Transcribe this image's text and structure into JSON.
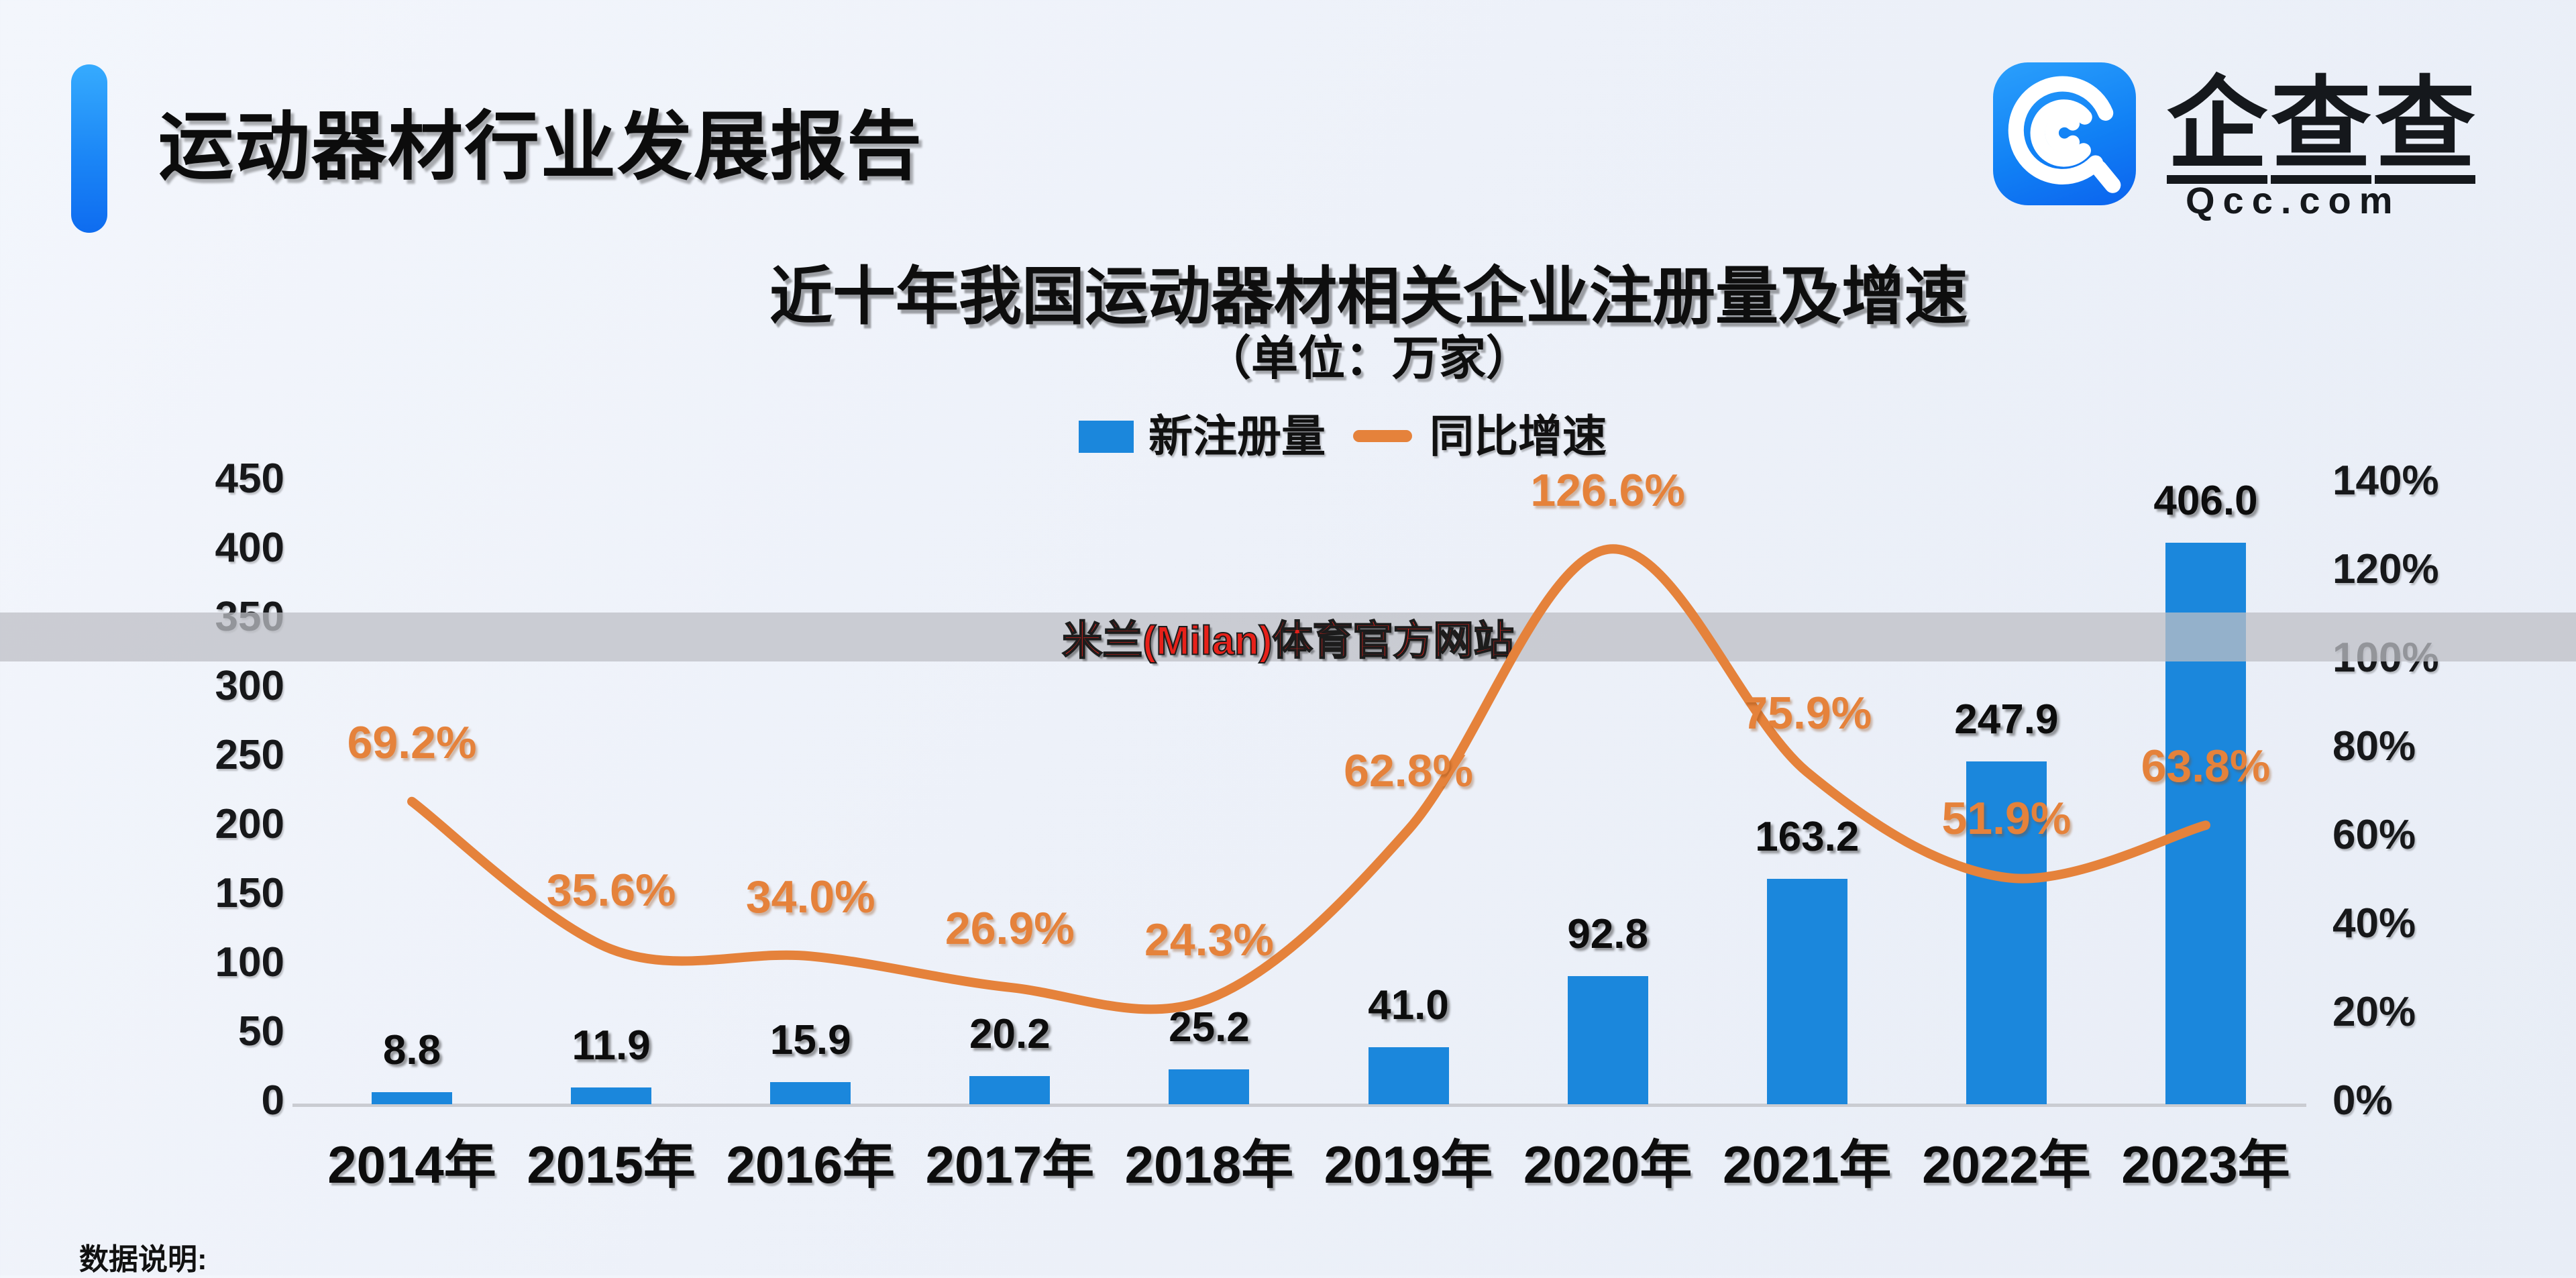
{
  "header": {
    "title": "运动器材行业发展报告"
  },
  "logo": {
    "chars": [
      "企",
      "查",
      "查"
    ],
    "domain": "Qcc.com",
    "icon": "qcc-magnifier-icon",
    "square_color_top": "#2ba0fc",
    "square_color_bottom": "#0b63ee"
  },
  "watermark": {
    "text": "米兰(Milan)体育官方网站"
  },
  "footer": {
    "note": "数据说明:"
  },
  "chart_data": {
    "type": "bar",
    "title": "近十年我国运动器材相关企业注册量及增速",
    "subtitle": "（单位：万家）",
    "categories": [
      "2014年",
      "2015年",
      "2016年",
      "2017年",
      "2018年",
      "2019年",
      "2020年",
      "2021年",
      "2022年",
      "2023年"
    ],
    "series": [
      {
        "name": "新注册量",
        "type": "bar",
        "values": [
          8.8,
          11.9,
          15.9,
          20.2,
          25.2,
          41.0,
          92.8,
          163.2,
          247.9,
          406.0
        ],
        "labels": [
          "8.8",
          "11.9",
          "15.9",
          "20.2",
          "25.2",
          "41.0",
          "92.8",
          "163.2",
          "247.9",
          "406.0"
        ]
      },
      {
        "name": "同比增速",
        "type": "line",
        "values": [
          69.2,
          35.6,
          34.0,
          26.9,
          24.3,
          62.8,
          126.6,
          75.9,
          51.9,
          63.8
        ],
        "labels": [
          "69.2%",
          "35.6%",
          "34.0%",
          "26.9%",
          "24.3%",
          "62.8%",
          "126.6%",
          "75.9%",
          "51.9%",
          "63.8%"
        ]
      }
    ],
    "y_left": {
      "ticks": [
        450,
        400,
        350,
        300,
        250,
        200,
        150,
        100,
        50,
        0
      ],
      "min": 0,
      "max": 450
    },
    "y_right": {
      "ticks": [
        "140%",
        "120%",
        "100%",
        "80%",
        "60%",
        "40%",
        "20%",
        "0%"
      ],
      "min_pct": 0,
      "max_pct": 140
    },
    "legend": [
      "新注册量",
      "同比增速"
    ],
    "legend_position": "top-center",
    "grid": false,
    "colors": {
      "bar": "#1b87dc",
      "line": "#e5823b",
      "label_text": "#0d0d0d"
    }
  }
}
